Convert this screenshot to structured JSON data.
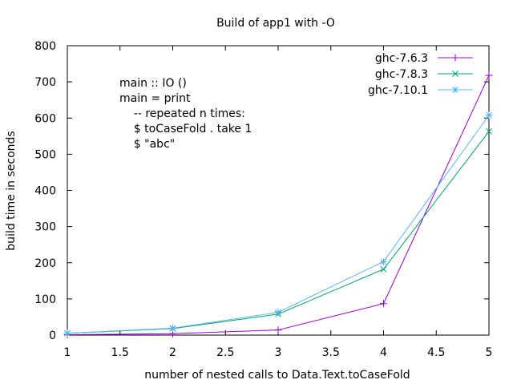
{
  "chart_data": {
    "type": "line",
    "title": "Build of app1 with -O",
    "xlabel": "number of nested calls to Data.Text.toCaseFold",
    "ylabel": "build time in seconds",
    "xlim": [
      1,
      5
    ],
    "ylim": [
      0,
      800
    ],
    "x_ticks": [
      "1",
      "1.5",
      "2",
      "2.5",
      "3",
      "3.5",
      "4",
      "4.5",
      "5"
    ],
    "y_ticks": [
      "0",
      "100",
      "200",
      "300",
      "400",
      "500",
      "600",
      "700",
      "800"
    ],
    "x": [
      1,
      2,
      3,
      4,
      5
    ],
    "grid": false,
    "legend_position": "top-right",
    "series": [
      {
        "name": "ghc-7.6.3",
        "color": "#9400d3",
        "marker": "plus",
        "values": [
          1,
          4,
          14,
          87,
          718
        ]
      },
      {
        "name": "ghc-7.8.3",
        "color": "#009e73",
        "marker": "cross",
        "values": [
          5,
          18,
          58,
          182,
          563
        ]
      },
      {
        "name": "ghc-7.10.1",
        "color": "#56b4e9",
        "marker": "star",
        "values": [
          5,
          19,
          63,
          203,
          608
        ]
      }
    ],
    "annotation": {
      "lines": [
        "main :: IO ()",
        "main = print",
        "    -- repeated n times:",
        "    $ toCaseFold . take 1",
        "    $ \"abc\""
      ]
    }
  }
}
